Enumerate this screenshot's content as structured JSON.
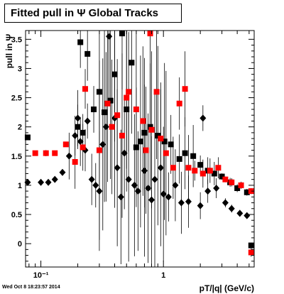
{
  "chart_data": {
    "type": "scatter",
    "title": "Fitted pull in Ψ   Global Tracks",
    "xlabel": "pT/|q| (GeV/c)",
    "ylabel": "pull in Ψ",
    "xscale": "log",
    "xlim": [
      0.075,
      5.5
    ],
    "ylim": [
      -0.4,
      3.65
    ],
    "x_ticks": [
      {
        "value": 0.1,
        "label": "10⁻¹"
      },
      {
        "value": 1,
        "label": "1"
      }
    ],
    "y_ticks": [
      0,
      0.5,
      1,
      1.5,
      2,
      2.5,
      3,
      3.5
    ],
    "grid": false,
    "series": [
      {
        "marker": "square",
        "color": "#000000",
        "points": [
          {
            "x": 0.078,
            "y": 1.82
          },
          {
            "x": 0.21,
            "y": 3.45
          },
          {
            "x": 0.2,
            "y": 2.0
          },
          {
            "x": 0.22,
            "y": 1.9
          },
          {
            "x": 0.24,
            "y": 3.25
          },
          {
            "x": 0.27,
            "y": 2.3
          },
          {
            "x": 0.3,
            "y": 2.6
          },
          {
            "x": 0.33,
            "y": 2.25
          },
          {
            "x": 0.37,
            "y": 2.45
          },
          {
            "x": 0.4,
            "y": 2.9
          },
          {
            "x": 0.46,
            "y": 3.6
          },
          {
            "x": 0.5,
            "y": 2.3
          },
          {
            "x": 0.55,
            "y": 3.1
          },
          {
            "x": 0.6,
            "y": 1.65
          },
          {
            "x": 0.65,
            "y": 1.75
          },
          {
            "x": 0.7,
            "y": 1.9
          },
          {
            "x": 0.78,
            "y": 2.0
          },
          {
            "x": 0.9,
            "y": 1.85
          },
          {
            "x": 1.02,
            "y": 1.75
          },
          {
            "x": 1.15,
            "y": 1.7
          },
          {
            "x": 1.35,
            "y": 1.45
          },
          {
            "x": 1.5,
            "y": 1.55
          },
          {
            "x": 1.75,
            "y": 1.5
          },
          {
            "x": 2.0,
            "y": 1.35
          },
          {
            "x": 2.3,
            "y": 1.25
          },
          {
            "x": 2.6,
            "y": 1.2
          },
          {
            "x": 3.0,
            "y": 1.15
          },
          {
            "x": 3.5,
            "y": 1.05
          },
          {
            "x": 4.0,
            "y": 0.95
          },
          {
            "x": 4.8,
            "y": 0.88
          },
          {
            "x": 5.2,
            "y": -0.03
          }
        ]
      },
      {
        "marker": "diamond",
        "color": "#000000",
        "points": [
          {
            "x": 0.078,
            "y": 1.05
          },
          {
            "x": 0.1,
            "y": 1.05
          },
          {
            "x": 0.115,
            "y": 1.05
          },
          {
            "x": 0.13,
            "y": 1.1
          },
          {
            "x": 0.15,
            "y": 1.22
          },
          {
            "x": 0.17,
            "y": 1.5
          },
          {
            "x": 0.19,
            "y": 1.85
          },
          {
            "x": 0.2,
            "y": 2.15
          },
          {
            "x": 0.21,
            "y": 1.75
          },
          {
            "x": 0.23,
            "y": 1.6
          },
          {
            "x": 0.24,
            "y": 2.1
          },
          {
            "x": 0.26,
            "y": 1.1
          },
          {
            "x": 0.28,
            "y": 1.0
          },
          {
            "x": 0.3,
            "y": 0.9
          },
          {
            "x": 0.32,
            "y": 1.7
          },
          {
            "x": 0.34,
            "y": 2.0
          },
          {
            "x": 0.36,
            "y": 3.55
          },
          {
            "x": 0.4,
            "y": 2.15
          },
          {
            "x": 0.42,
            "y": 1.3
          },
          {
            "x": 0.45,
            "y": 0.8
          },
          {
            "x": 0.48,
            "y": 1.55
          },
          {
            "x": 0.52,
            "y": 1.1
          },
          {
            "x": 0.58,
            "y": 1.0
          },
          {
            "x": 0.62,
            "y": 0.9
          },
          {
            "x": 0.7,
            "y": 1.25
          },
          {
            "x": 0.75,
            "y": 0.95
          },
          {
            "x": 0.8,
            "y": 0.75
          },
          {
            "x": 0.85,
            "y": 1.1
          },
          {
            "x": 0.95,
            "y": 1.3
          },
          {
            "x": 1.0,
            "y": 0.85
          },
          {
            "x": 1.1,
            "y": 0.8
          },
          {
            "x": 1.25,
            "y": 1.0
          },
          {
            "x": 1.4,
            "y": 0.7
          },
          {
            "x": 1.6,
            "y": 0.72
          },
          {
            "x": 2.0,
            "y": 0.65
          },
          {
            "x": 2.3,
            "y": 0.9
          },
          {
            "x": 2.7,
            "y": 0.95
          },
          {
            "x": 3.2,
            "y": 0.7
          },
          {
            "x": 3.6,
            "y": 0.6
          },
          {
            "x": 4.2,
            "y": 0.52
          },
          {
            "x": 4.8,
            "y": 0.48
          },
          {
            "x": 2.1,
            "y": 2.15
          }
        ]
      },
      {
        "marker": "square",
        "color": "#ff0000",
        "points": [
          {
            "x": 0.09,
            "y": 1.55
          },
          {
            "x": 0.11,
            "y": 1.55
          },
          {
            "x": 0.13,
            "y": 1.55
          },
          {
            "x": 0.16,
            "y": 1.7
          },
          {
            "x": 0.19,
            "y": 1.4
          },
          {
            "x": 0.22,
            "y": 1.65
          },
          {
            "x": 0.23,
            "y": 2.65
          },
          {
            "x": 0.3,
            "y": 1.6
          },
          {
            "x": 0.35,
            "y": 2.4
          },
          {
            "x": 0.38,
            "y": 2.0
          },
          {
            "x": 0.42,
            "y": 2.2
          },
          {
            "x": 0.46,
            "y": 1.85
          },
          {
            "x": 0.5,
            "y": 2.5
          },
          {
            "x": 0.52,
            "y": 2.6
          },
          {
            "x": 0.6,
            "y": 2.3
          },
          {
            "x": 0.68,
            "y": 2.1
          },
          {
            "x": 0.72,
            "y": 1.6
          },
          {
            "x": 0.78,
            "y": 3.6
          },
          {
            "x": 0.8,
            "y": 1.95
          },
          {
            "x": 0.88,
            "y": 2.6
          },
          {
            "x": 0.95,
            "y": 1.8
          },
          {
            "x": 1.05,
            "y": 1.55
          },
          {
            "x": 1.2,
            "y": 1.3
          },
          {
            "x": 1.35,
            "y": 2.4
          },
          {
            "x": 1.5,
            "y": 2.65
          },
          {
            "x": 1.6,
            "y": 1.3
          },
          {
            "x": 1.8,
            "y": 1.25
          },
          {
            "x": 2.1,
            "y": 1.2
          },
          {
            "x": 2.4,
            "y": 1.25
          },
          {
            "x": 2.8,
            "y": 1.3
          },
          {
            "x": 3.2,
            "y": 1.1
          },
          {
            "x": 3.6,
            "y": 1.05
          },
          {
            "x": 4.3,
            "y": 1.0
          },
          {
            "x": 5.2,
            "y": 0.9
          },
          {
            "x": 5.2,
            "y": -0.15
          }
        ]
      }
    ]
  },
  "footer": {
    "datestamp": "Wed Oct  8 18:23:57 2014"
  }
}
